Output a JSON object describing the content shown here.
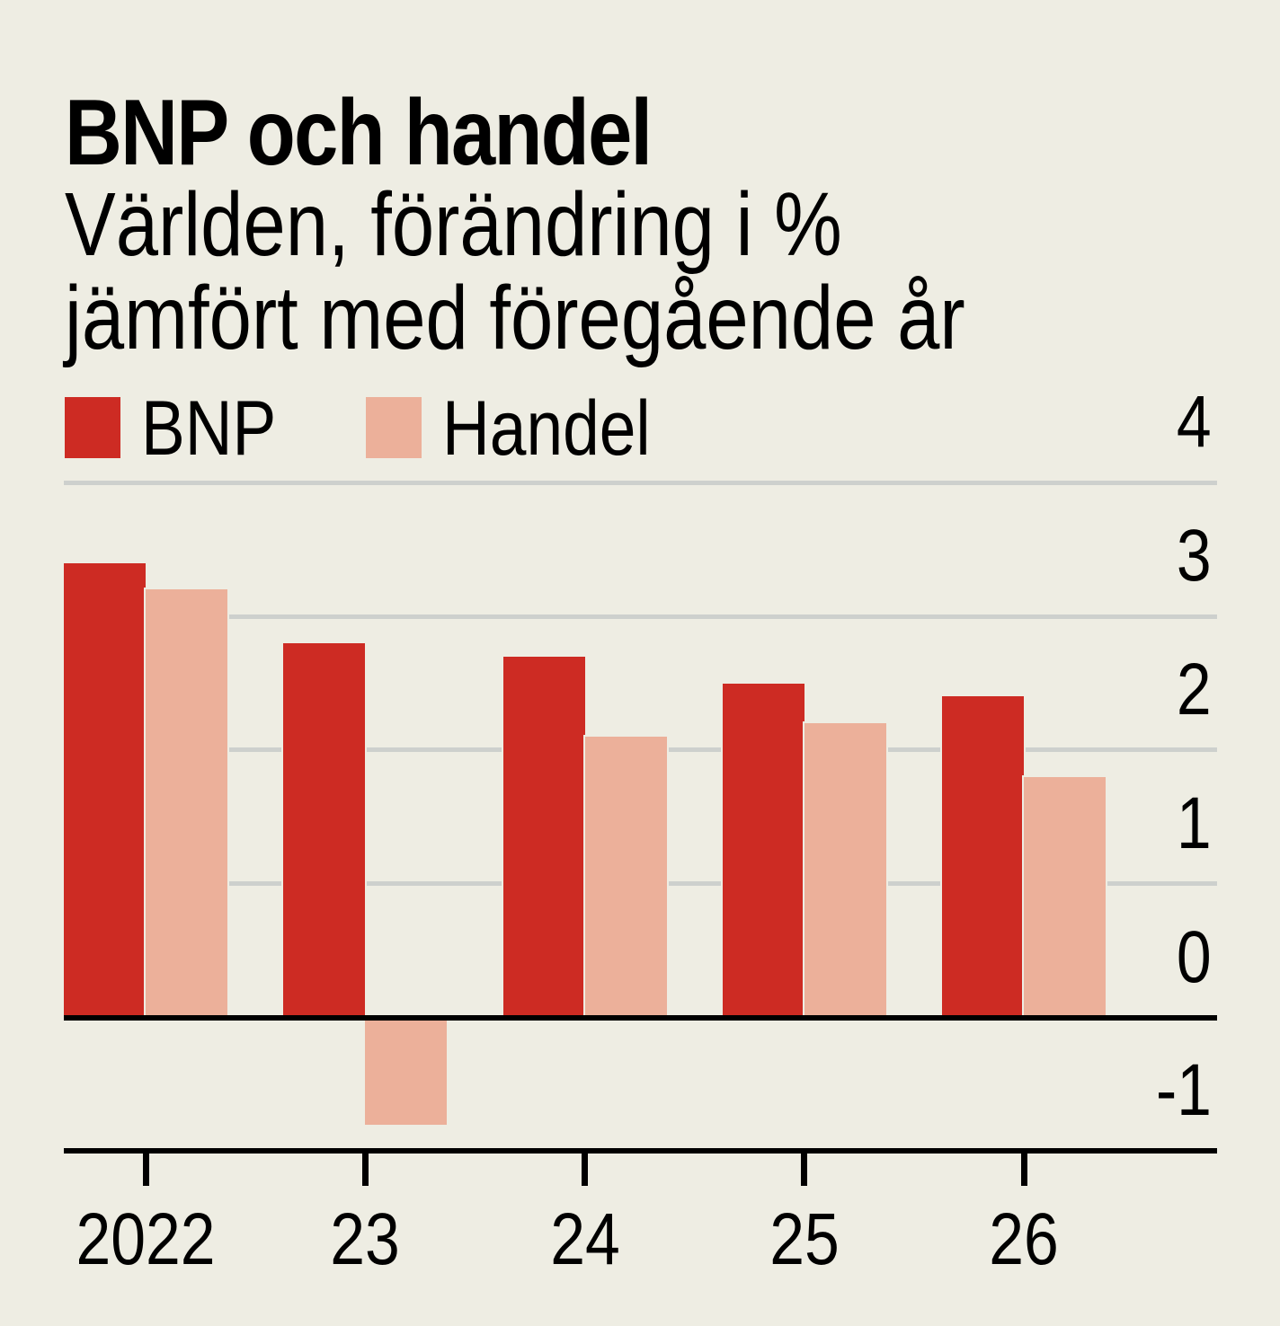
{
  "header": {
    "title": "BNP och handel",
    "subtitle_line1": "Världen, förändring i %",
    "subtitle_line2": "jämfört med föregående år"
  },
  "colors": {
    "background": "#eeede3",
    "gridline": "#cdd0cd",
    "axis": "#000000",
    "text": "#000000",
    "bnp_red": "#cd2b23",
    "handel_pink": "#ecb09a"
  },
  "chart_data": {
    "type": "bar",
    "title": "BNP och handel",
    "subtitle": "Världen, förändring i % jämfört med föregående år",
    "categories": [
      "2022",
      "23",
      "24",
      "25",
      "26"
    ],
    "series": [
      {
        "name": "BNP",
        "color": "#cd2b23",
        "values": [
          3.4,
          2.8,
          2.7,
          2.5,
          2.4
        ]
      },
      {
        "name": "Handel",
        "color": "#ecb09a",
        "values": [
          3.2,
          -0.8,
          2.1,
          2.2,
          1.8
        ]
      }
    ],
    "ylim": [
      -1,
      4
    ],
    "yticks": [
      4,
      3,
      2,
      1,
      0,
      -1
    ],
    "ytick_labels": [
      "4",
      "3",
      "2",
      "1",
      "0",
      "-1"
    ],
    "grid_values": [
      4,
      3,
      2,
      1
    ],
    "zero_line": true,
    "grid": true,
    "legend_position": "top-left",
    "value_axis_side": "right",
    "unit": "%"
  }
}
